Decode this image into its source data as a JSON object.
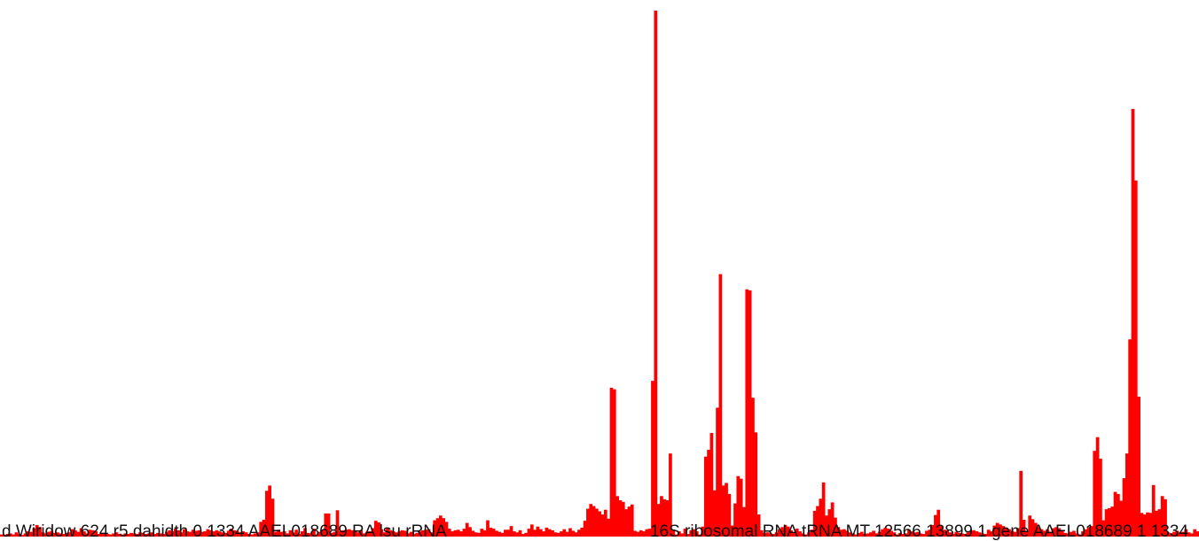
{
  "chart_data": {
    "type": "bar",
    "color": "#ff0000",
    "ylim": [
      0,
      100
    ],
    "labels": {
      "left": "d Wiridow 624 r5 dahidth 0 1334 AAEL018689 RA lsu rRNA",
      "right": "16S ribosomal RNA tRNA MT 12566 13899 1 gene AAEL018689 1 1334"
    },
    "values": [
      0.4,
      0.3,
      0.5,
      0.6,
      0.4,
      0.8,
      0.5,
      0.3,
      0.6,
      1.0,
      0.9,
      1.6,
      2.2,
      1.8,
      0.8,
      0.6,
      0.9,
      1.1,
      0.7,
      0.8,
      0.6,
      0.5,
      0.7,
      0.8,
      1.4,
      1.2,
      0.9,
      1.6,
      1.0,
      0.6,
      1.3,
      1.2,
      1.0,
      0.5,
      0.7,
      0.6,
      0.5,
      0.4,
      0.6,
      0.8,
      0.5,
      0.4,
      0.6,
      0.5,
      0.7,
      0.6,
      0.5,
      0.8,
      0.7,
      0.5,
      0.6,
      0.8,
      0.5,
      0.7,
      0.6,
      0.5,
      0.9,
      1.2,
      1.0,
      1.5,
      1.2,
      0.8,
      1.4,
      1.0,
      0.9,
      1.3,
      1.1,
      1.2,
      0.9,
      1.0,
      1.4,
      1.2,
      1.0,
      1.2,
      1.0,
      0.8,
      0.7,
      1.1,
      1.5,
      1.2,
      1.1,
      0.8,
      1.0,
      0.8,
      0.5,
      0.4,
      0.6,
      0.8,
      2.8,
      3.2,
      8.7,
      9.7,
      7.2,
      0.9,
      1.3,
      0.9,
      1.0,
      0.6,
      1.2,
      0.8,
      1.3,
      0.5,
      1.0,
      1.6,
      0.7,
      0.6,
      1.5,
      0.4,
      0.9,
      1.3,
      4.4,
      4.4,
      0.7,
      0.9,
      5.0,
      1.0,
      1.2,
      1.3,
      1.4,
      1.2,
      1.1,
      0.8,
      1.2,
      0.6,
      0.9,
      1.0,
      1.6,
      3.0,
      2.7,
      1.4,
      0.8,
      1.6,
      1.2,
      1.0,
      0.8,
      1.0,
      1.2,
      1.1,
      0.6,
      0.9,
      0.5,
      0.7,
      1.0,
      1.2,
      1.3,
      1.4,
      0.8,
      3.1,
      3.5,
      4.0,
      3.5,
      2.8,
      1.5,
      1.0,
      1.2,
      1.3,
      1.0,
      1.5,
      2.6,
      1.8,
      1.1,
      0.8,
      0.7,
      1.5,
      1.2,
      3.1,
      1.7,
      1.5,
      1.1,
      0.9,
      0.7,
      1.3,
      1.3,
      2.0,
      1.0,
      0.8,
      1.2,
      0.5,
      0.7,
      1.5,
      2.3,
      1.3,
      1.9,
      1.4,
      1.0,
      1.7,
      1.4,
      1.2,
      0.8,
      0.7,
      1.0,
      1.4,
      0.9,
      1.6,
      1.1,
      0.8,
      1.3,
      1.7,
      3.0,
      5.3,
      6.2,
      5.8,
      5.3,
      4.8,
      4.2,
      5.1,
      3.4,
      28.3,
      28.0,
      7.7,
      6.9,
      6.6,
      5.2,
      5.7,
      6.1,
      1.1,
      0.9,
      1.2,
      1.0,
      1.4,
      1.5,
      29.6,
      100.0,
      6.2,
      7.7,
      7.1,
      6.9,
      15.8,
      1.3,
      0.4,
      1.0,
      0.6,
      1.5,
      0.5,
      1.2,
      1.4,
      1.0,
      0.4,
      1.9,
      15.2,
      16.5,
      19.7,
      8.8,
      24.5,
      49.9,
      9.7,
      10.2,
      8.1,
      2.1,
      6.3,
      11.5,
      11.0,
      5.6,
      47.0,
      46.8,
      26.4,
      19.8,
      4.2,
      1.2,
      0.7,
      0.8,
      0.6,
      0.5,
      0.8,
      1.4,
      1.8,
      2.2,
      1.9,
      1.2,
      0.8,
      1.5,
      1.0,
      0.6,
      0.4,
      0.8,
      1.3,
      4.9,
      5.8,
      7.2,
      10.3,
      4.0,
      5.2,
      6.5,
      3.6,
      1.8,
      1.3,
      1.4,
      1.1,
      0.8,
      0.6,
      0.4,
      0.7,
      0.9,
      0.5,
      0.6,
      0.8,
      1.1,
      0.6,
      0.9,
      1.4,
      1.7,
      1.5,
      1.1,
      0.8,
      0.4,
      0.7,
      0.5,
      0.6,
      1.3,
      1.0,
      0.8,
      0.9,
      0.6,
      0.5,
      1.1,
      1.3,
      2.2,
      4.1,
      5.1,
      2.0,
      1.3,
      1.2,
      0.8,
      0.5,
      0.9,
      0.7,
      0.6,
      0.5,
      0.8,
      1.0,
      1.2,
      1.0,
      0.8,
      0.6,
      0.5,
      1.3,
      1.0,
      2.1,
      2.6,
      2.3,
      2.0,
      1.7,
      1.4,
      1.1,
      0.9,
      1.6,
      12.5,
      3.2,
      1.0,
      4.0,
      3.3,
      2.6,
      1.8,
      1.4,
      1.1,
      1.4,
      0.9,
      1.6,
      1.8,
      1.6,
      1.1,
      0.7,
      0.6,
      0.9,
      1.1,
      0.6,
      0.4,
      1.0,
      1.4,
      1.8,
      2.0,
      16.3,
      18.9,
      14.8,
      3.1,
      5.2,
      5.4,
      5.7,
      8.5,
      8.1,
      6.8,
      11.1,
      15.8,
      37.5,
      81.3,
      67.7,
      26.6,
      4.5,
      4.2,
      4.6,
      4.5,
      9.8,
      4.9,
      5.2,
      7.7,
      7.1,
      0.8,
      0.6,
      0.9,
      1.1,
      0.8,
      0.9,
      1.4,
      0.8,
      0.6,
      1.4,
      1.0
    ]
  }
}
